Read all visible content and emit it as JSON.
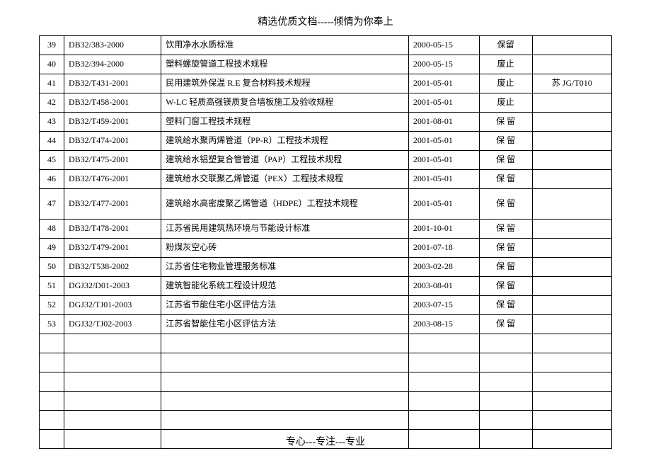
{
  "header": "精选优质文档-----倾情为你奉上",
  "footer": "专心---专注---专业",
  "rows": [
    {
      "idx": "39",
      "code": "DB32/383-2000",
      "name": "饮用净水水质标准",
      "date": "2000-05-15",
      "status": "保留",
      "note": ""
    },
    {
      "idx": "40",
      "code": "DB32/394-2000",
      "name": "塑料螺旋管道工程技术规程",
      "date": "2000-05-15",
      "status": "废止",
      "note": ""
    },
    {
      "idx": "41",
      "code": "DB32/T431-2001",
      "name": "民用建筑外保温 R.E 复合材料技术规程",
      "date": "2001-05-01",
      "status": "废止",
      "note": "苏 JG/T010"
    },
    {
      "idx": "42",
      "code": "DB32/T458-2001",
      "name": "W-LC 轻质高强镁质复合墙板施工及验收规程",
      "date": "2001-05-01",
      "status": "废止",
      "note": ""
    },
    {
      "idx": "43",
      "code": "DB32/T459-2001",
      "name": "塑料门窗工程技术规程",
      "date": "2001-08-01",
      "status": "保 留",
      "note": ""
    },
    {
      "idx": "44",
      "code": "DB32/T474-2001",
      "name": "建筑给水聚丙烯管道（PP-R）工程技术规程",
      "date": "2001-05-01",
      "status": "保 留",
      "note": ""
    },
    {
      "idx": "45",
      "code": "DB32/T475-2001",
      "name": "建筑给水铝塑复合管管道（PAP）工程技术规程",
      "date": "2001-05-01",
      "status": "保 留",
      "note": ""
    },
    {
      "idx": "46",
      "code": "DB32/T476-2001",
      "name": "建筑给水交联聚乙烯管道（PEX）工程技术规程",
      "date": "2001-05-01",
      "status": "保 留",
      "note": ""
    },
    {
      "idx": "47",
      "code": "DB32/T477-2001",
      "name": "建筑给水高密度聚乙烯管道（HDPE）工程技术规程",
      "date": "2001-05-01",
      "status": "保 留",
      "note": "",
      "tall": true
    },
    {
      "idx": "48",
      "code": "DB32/T478-2001",
      "name": "江苏省民用建筑热环境与节能设计标准",
      "date": "2001-10-01",
      "status": "保 留",
      "note": ""
    },
    {
      "idx": "49",
      "code": "DB32/T479-2001",
      "name": "粉煤灰空心砖",
      "date": "2001-07-18",
      "status": "保 留",
      "note": ""
    },
    {
      "idx": "50",
      "code": "DB32/T538-2002",
      "name": "江苏省住宅物业管理服务标准",
      "date": "2003-02-28",
      "status": "保 留",
      "note": ""
    },
    {
      "idx": "51",
      "code": "DGJ32/D01-2003",
      "name": "建筑智能化系统工程设计规范",
      "date": "2003-08-01",
      "status": "保 留",
      "note": ""
    },
    {
      "idx": "52",
      "code": "DGJ32/TJ01-2003",
      "name": "江苏省节能住宅小区评估方法",
      "date": "2003-07-15",
      "status": "保 留",
      "note": ""
    },
    {
      "idx": "53",
      "code": "DGJ32/TJ02-2003",
      "name": "江苏省智能住宅小区评估方法",
      "date": "2003-08-15",
      "status": "保 留",
      "note": ""
    }
  ],
  "empty_rows": 6
}
